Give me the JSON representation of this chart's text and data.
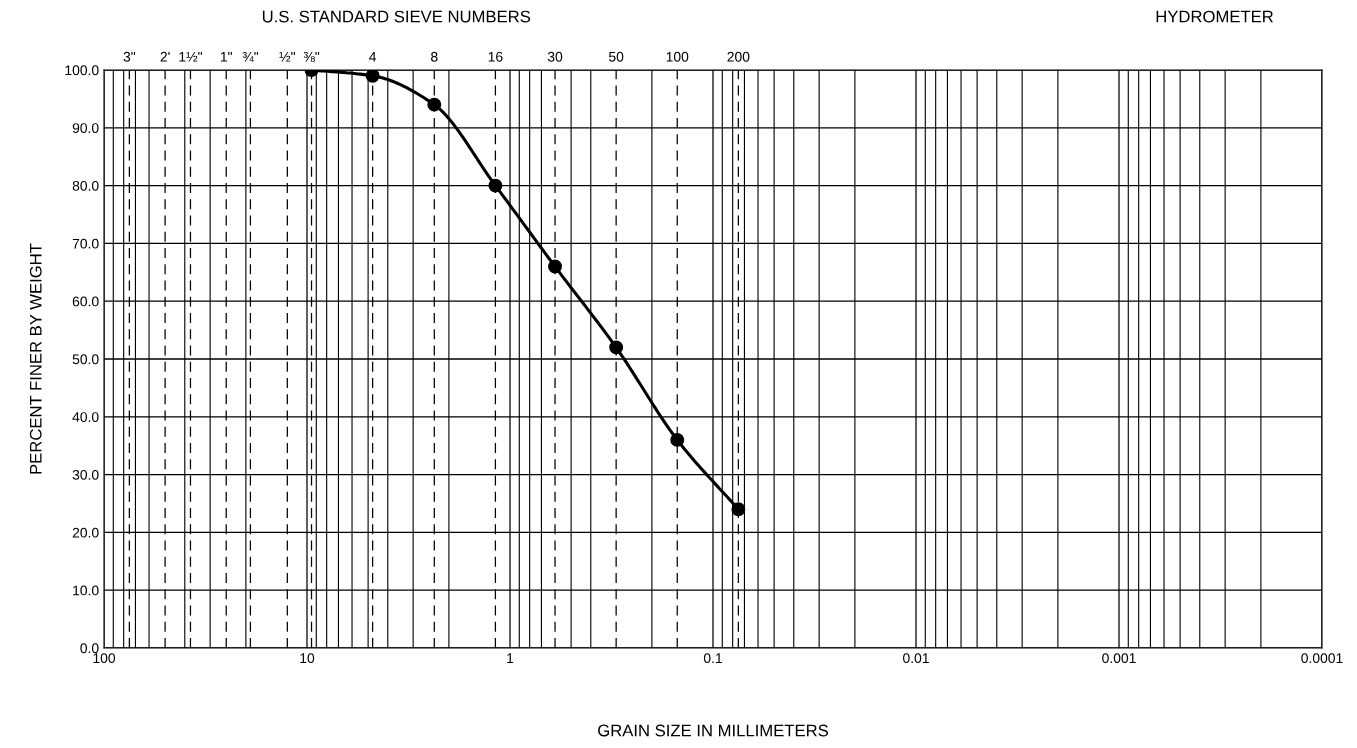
{
  "chart_data": {
    "type": "line",
    "xlabel": "GRAIN SIZE IN MILLIMETERS",
    "ylabel": "PERCENT FINER BY WEIGHT",
    "annotations": [
      "U.S. STANDARD SIEVE NUMBERS",
      "HYDROMETER",
      {
        "text": "3\"",
        "x": 75,
        "y": 100
      },
      {
        "text": "2'",
        "x": 50,
        "y": 100
      },
      {
        "text": "1½\"",
        "x": 37.5,
        "y": 100
      },
      {
        "text": "1\"",
        "x": 25,
        "y": 100
      },
      {
        "text": "¾\"",
        "x": 19,
        "y": 100
      },
      {
        "text": "½\"",
        "x": 12.5,
        "y": 100
      },
      {
        "text": "⅜\"",
        "x": 9.5,
        "y": 100
      },
      {
        "text": "4",
        "x": 4.75,
        "y": 100
      },
      {
        "text": "8",
        "x": 2.36,
        "y": 100
      },
      {
        "text": "16",
        "x": 1.18,
        "y": 100
      },
      {
        "text": "30",
        "x": 0.6,
        "y": 100
      },
      {
        "text": "50",
        "x": 0.3,
        "y": 100
      },
      {
        "text": "100",
        "x": 0.15,
        "y": 100
      },
      {
        "text": "200",
        "x": 0.075,
        "y": 100
      }
    ],
    "x": [
      9.5,
      4.75,
      2.36,
      1.18,
      0.6,
      0.3,
      0.15,
      0.075
    ],
    "series": [
      {
        "color": "#000000",
        "values": [
          100,
          99,
          94,
          80,
          66,
          52,
          36,
          24
        ]
      }
    ],
    "log": "x",
    "marker": "circle",
    "line_style": "solid",
    "grid": true,
    "xlim": [
      100,
      0.0001
    ],
    "xticks": [
      100,
      10,
      1,
      0.1,
      0.01,
      0.001,
      0.0001
    ],
    "ref_lines": [
      {
        "axis": "x",
        "value": 75,
        "line_style": "dashed"
      },
      {
        "axis": "x",
        "value": 50,
        "line_style": "dashed"
      },
      {
        "axis": "x",
        "value": 37.5,
        "line_style": "dashed"
      },
      {
        "axis": "x",
        "value": 25,
        "line_style": "dashed"
      },
      {
        "axis": "x",
        "value": 19,
        "line_style": "dashed"
      },
      {
        "axis": "x",
        "value": 12.5,
        "line_style": "dashed"
      },
      {
        "axis": "x",
        "value": 9.5,
        "line_style": "dashed"
      },
      {
        "axis": "x",
        "value": 4.75,
        "line_style": "dashed"
      },
      {
        "axis": "x",
        "value": 2.36,
        "line_style": "dashed"
      },
      {
        "axis": "x",
        "value": 1.18,
        "line_style": "dashed"
      },
      {
        "axis": "x",
        "value": 0.6,
        "line_style": "dashed"
      },
      {
        "axis": "x",
        "value": 0.3,
        "line_style": "dashed"
      },
      {
        "axis": "x",
        "value": 0.15,
        "line_style": "dashed"
      },
      {
        "axis": "x",
        "value": 0.075,
        "line_style": "dashed"
      }
    ],
    "ylim": [
      0,
      100
    ],
    "yticks": [
      {
        "value": 0,
        "label": "0.0"
      },
      {
        "value": 10,
        "label": "10.0"
      },
      {
        "value": 20,
        "label": "20.0"
      },
      {
        "value": 30,
        "label": "30.0"
      },
      {
        "value": 40,
        "label": "40.0"
      },
      {
        "value": 50,
        "label": "50.0"
      },
      {
        "value": 60,
        "label": "60.0"
      },
      {
        "value": 70,
        "label": "70.0"
      },
      {
        "value": 80,
        "label": "80.0"
      },
      {
        "value": 90,
        "label": "90.0"
      },
      {
        "value": 100,
        "label": "100.0"
      }
    ]
  }
}
